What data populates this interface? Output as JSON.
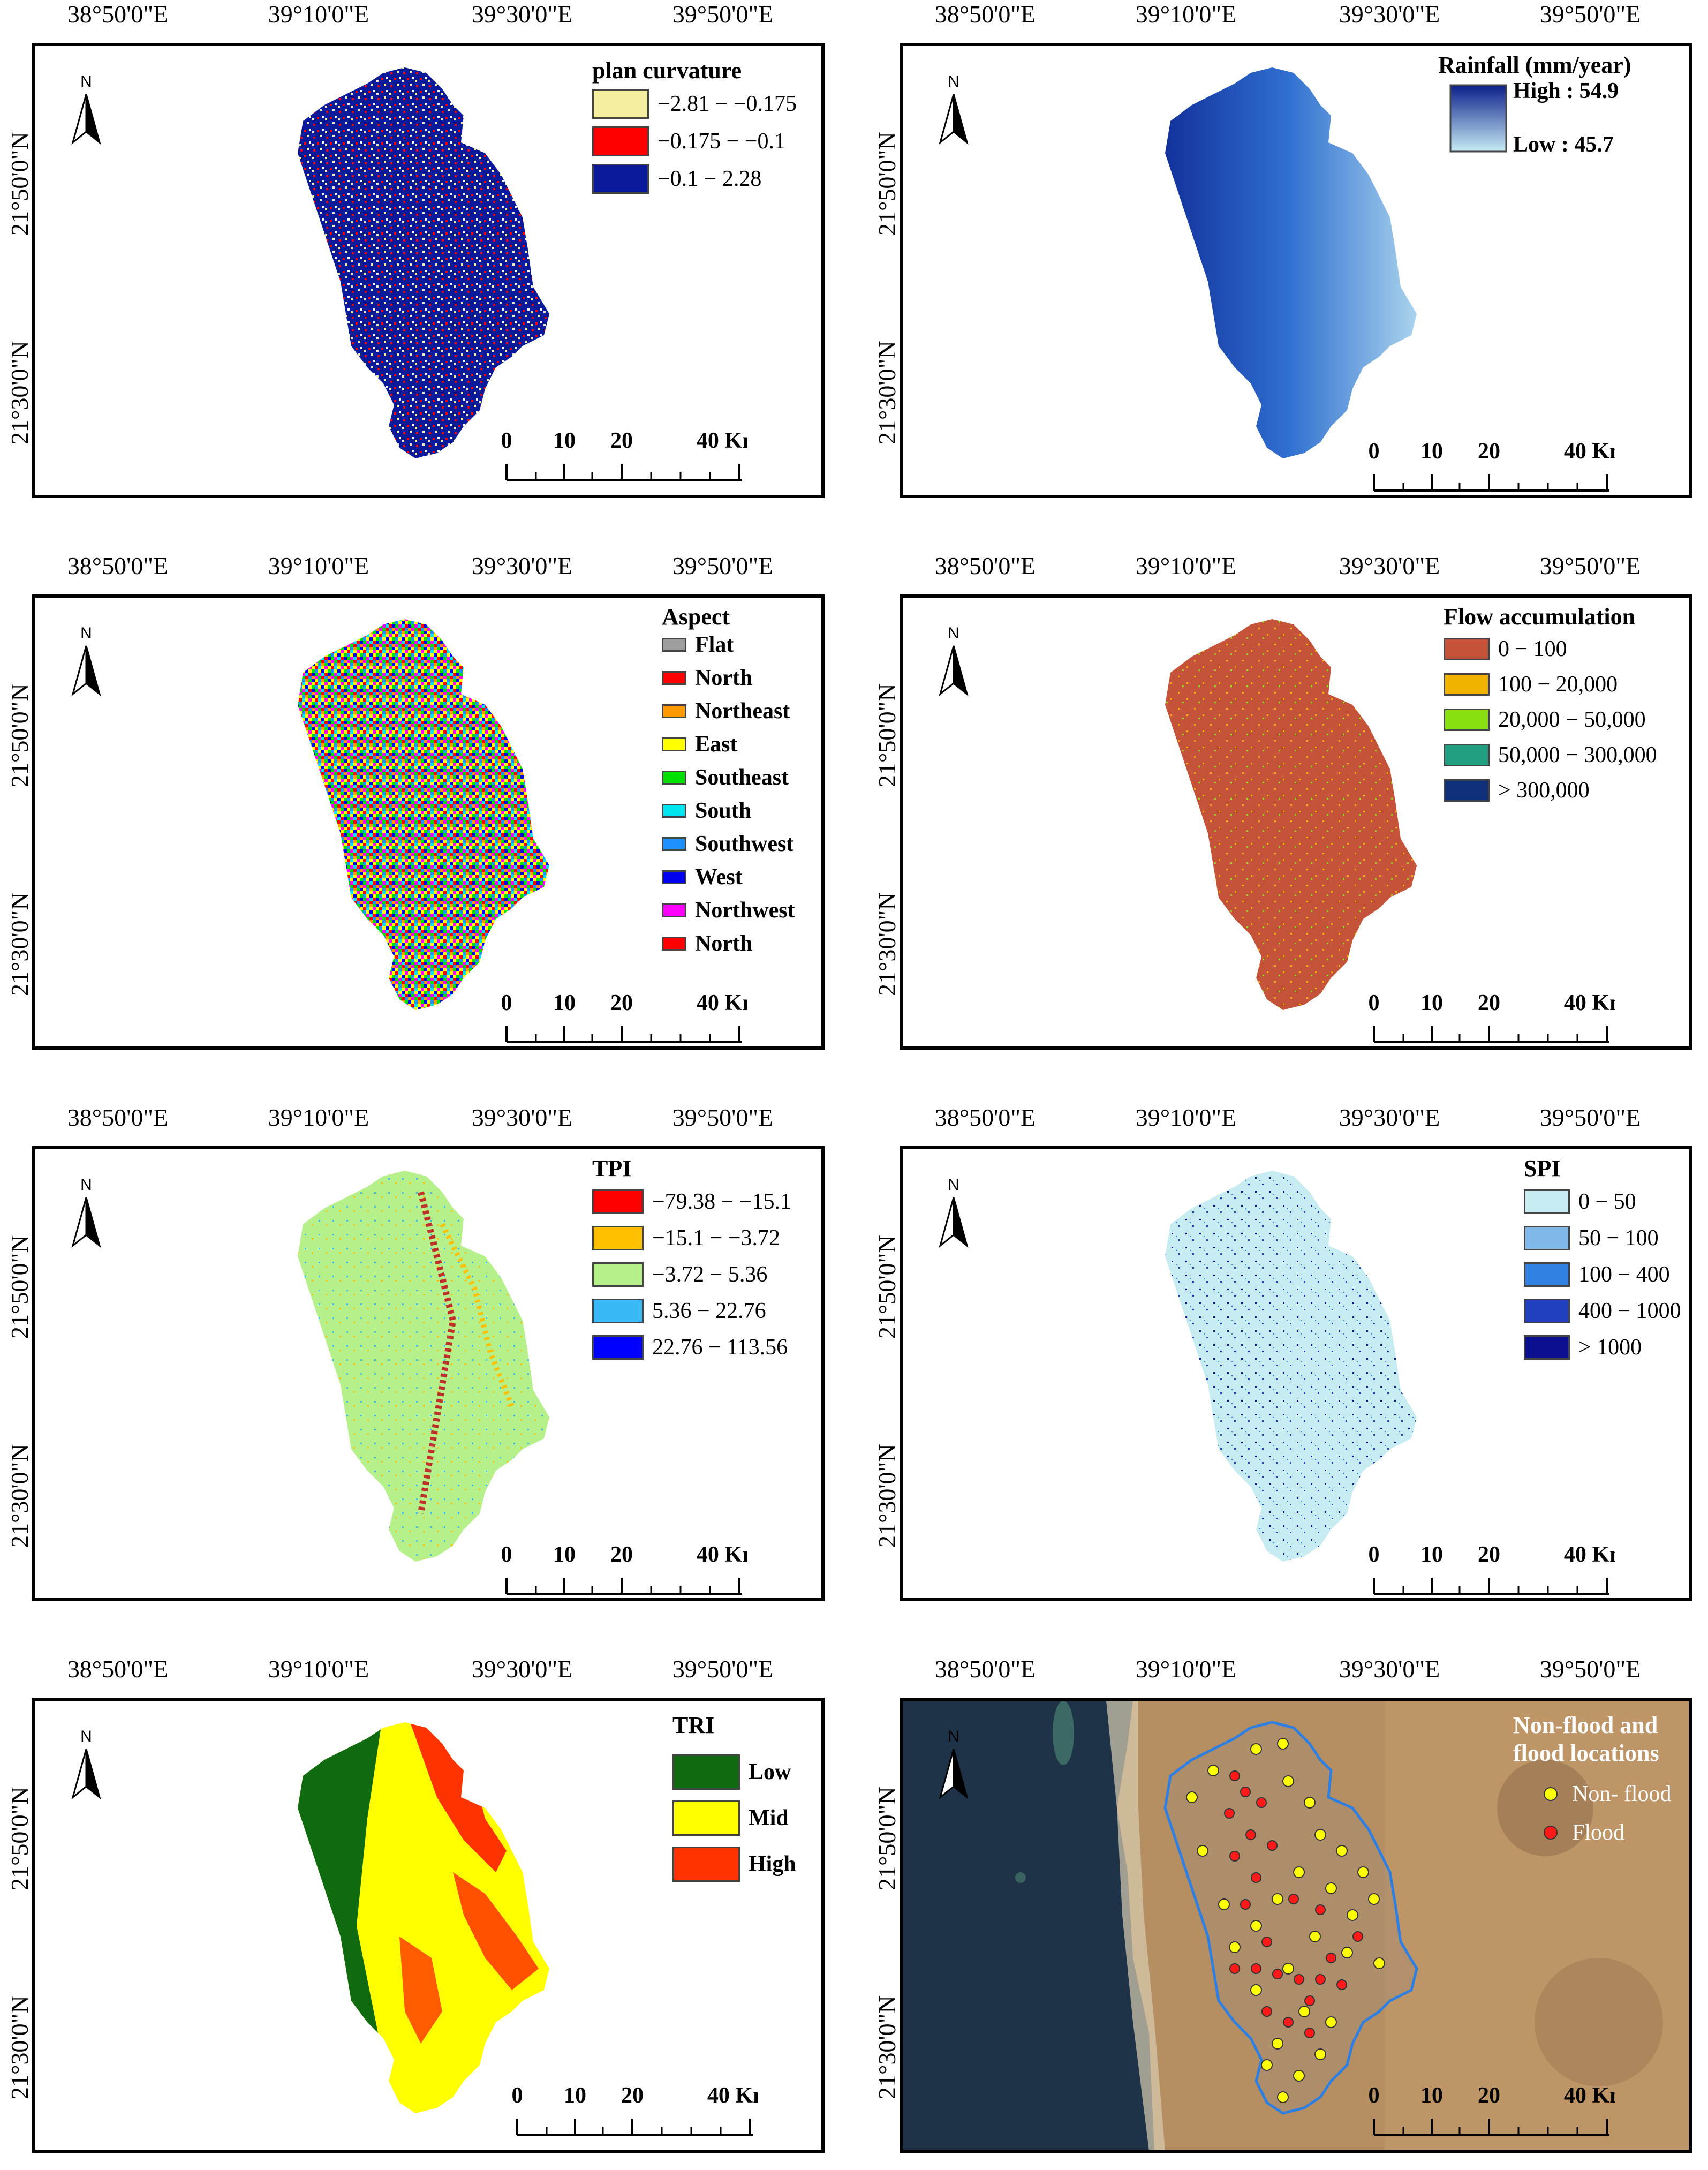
{
  "longitude_labels": [
    "38°50'0\"E",
    "39°10'0\"E",
    "39°30'0\"E",
    "39°50'0\"E"
  ],
  "latitude_labels": [
    "21°50'0\"N",
    "21°30'0\"N"
  ],
  "north_label": "N",
  "scale": {
    "ticks": [
      "0",
      "10",
      "20",
      "40 Km"
    ]
  },
  "panels": {
    "plan_curvature": {
      "legend_title": "plan curvature",
      "classes": [
        {
          "label": "−2.81 − −0.175",
          "color": "#f3eda0"
        },
        {
          "label": "−0.175 − −0.1",
          "color": "#ff0000"
        },
        {
          "label": "−0.1 − 2.28",
          "color": "#0a1a9a"
        }
      ]
    },
    "rainfall": {
      "legend_title": "Rainfall (mm/year)",
      "high_label": "High : 54.9",
      "low_label": "Low : 45.7",
      "high_color": "#0a1f8a",
      "low_color": "#c8ecf5"
    },
    "aspect": {
      "legend_title": "Aspect",
      "classes": [
        {
          "label": "Flat",
          "color": "#9e9e9e"
        },
        {
          "label": "North",
          "color": "#ff0000"
        },
        {
          "label": "Northeast",
          "color": "#ff9900"
        },
        {
          "label": "East",
          "color": "#ffff00"
        },
        {
          "label": "Southeast",
          "color": "#00e000"
        },
        {
          "label": "South",
          "color": "#00e5ee"
        },
        {
          "label": "Southwest",
          "color": "#1e90ff"
        },
        {
          "label": "West",
          "color": "#0000ee"
        },
        {
          "label": "Northwest",
          "color": "#ff00ff"
        },
        {
          "label": "North",
          "color": "#ff0000"
        }
      ]
    },
    "flow_accumulation": {
      "legend_title": "Flow accumulation",
      "classes": [
        {
          "label": "0 − 100",
          "color": "#c4533a"
        },
        {
          "label": "100 − 20,000",
          "color": "#f0b400"
        },
        {
          "label": "20,000 − 50,000",
          "color": "#88e010"
        },
        {
          "label": "50,000 − 300,000",
          "color": "#20a080"
        },
        {
          "label": "> 300,000",
          "color": "#10307a"
        }
      ]
    },
    "tpi": {
      "legend_title": "TPI",
      "classes": [
        {
          "label": "−79.38 − −15.1",
          "color": "#ff0000"
        },
        {
          "label": "−15.1 − −3.72",
          "color": "#ffc000"
        },
        {
          "label": "−3.72 − 5.36",
          "color": "#b5f08a"
        },
        {
          "label": "5.36 − 22.76",
          "color": "#38b8f5"
        },
        {
          "label": "22.76 − 113.56",
          "color": "#0000ff"
        }
      ]
    },
    "spi": {
      "legend_title": "SPI",
      "classes": [
        {
          "label": "0 − 50",
          "color": "#c6ecf2"
        },
        {
          "label": "50  − 100",
          "color": "#80b8ea"
        },
        {
          "label": "100  − 400",
          "color": "#2f80e0"
        },
        {
          "label": "400  − 1000",
          "color": "#2040c0"
        },
        {
          "label": "> 1000",
          "color": "#0a1090"
        }
      ]
    },
    "tri": {
      "legend_title": "TRI",
      "classes": [
        {
          "label": "Low",
          "color": "#0f6a10"
        },
        {
          "label": "Mid",
          "color": "#ffff00"
        },
        {
          "label": "High",
          "color": "#ff3300"
        }
      ]
    },
    "flood_locations": {
      "legend_title_line1": "Non-flood and",
      "legend_title_line2": "flood locations",
      "classes": [
        {
          "label": "Non- flood",
          "color": "#ffff00"
        },
        {
          "label": "Flood",
          "color": "#ff1a1a"
        }
      ]
    }
  }
}
